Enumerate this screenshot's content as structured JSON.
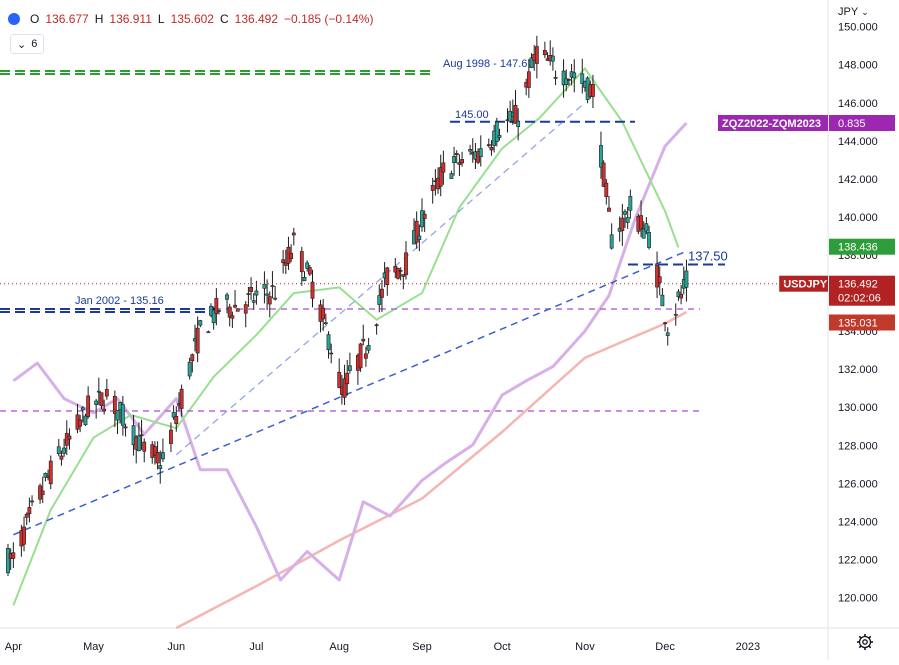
{
  "header": {
    "open_label": "O",
    "open": "136.677",
    "high_label": "H",
    "high": "136.911",
    "low_label": "L",
    "low": "135.602",
    "close_label": "C",
    "close": "136.492",
    "change": "−0.185 (−0.14%)",
    "indicator_count": "6",
    "currency": "JPY"
  },
  "chart_data": {
    "type": "line",
    "symbol": "USDJPY",
    "y_axis": {
      "ticks": [
        "150.000",
        "148.000",
        "146.000",
        "144.000",
        "142.000",
        "140.000",
        "138.000",
        "136.000",
        "134.000",
        "132.000",
        "130.000",
        "128.000",
        "126.000",
        "124.000",
        "122.000",
        "120.000"
      ],
      "ylim": [
        118.4,
        151.4
      ]
    },
    "x_axis": {
      "ticks": [
        "Apr",
        "May",
        "Jun",
        "Jul",
        "Aug",
        "Sep",
        "Oct",
        "Nov",
        "Dec",
        "2023"
      ]
    },
    "price_series": {
      "name": "USDJPY",
      "x": [
        "2022-04-01",
        "2022-04-08",
        "2022-04-15",
        "2022-04-22",
        "2022-04-29",
        "2022-05-06",
        "2022-05-13",
        "2022-05-20",
        "2022-05-27",
        "2022-06-03",
        "2022-06-10",
        "2022-06-17",
        "2022-06-24",
        "2022-07-01",
        "2022-07-08",
        "2022-07-15",
        "2022-07-22",
        "2022-07-29",
        "2022-08-02",
        "2022-08-12",
        "2022-08-19",
        "2022-08-26",
        "2022-09-02",
        "2022-09-09",
        "2022-09-16",
        "2022-09-23",
        "2022-09-30",
        "2022-10-07",
        "2022-10-14",
        "2022-10-21",
        "2022-10-28",
        "2022-11-04",
        "2022-11-11",
        "2022-11-18",
        "2022-11-25",
        "2022-12-02",
        "2022-12-09"
      ],
      "values": [
        122.0,
        124.5,
        126.6,
        128.3,
        129.9,
        130.6,
        129.3,
        127.8,
        127.1,
        130.6,
        134.0,
        135.2,
        135.3,
        135.8,
        136.1,
        138.6,
        136.4,
        133.2,
        130.8,
        133.5,
        136.9,
        137.6,
        140.2,
        142.4,
        143.0,
        143.4,
        144.7,
        145.3,
        148.7,
        147.7,
        147.4,
        146.6,
        138.9,
        140.4,
        139.0,
        134.3,
        136.5
      ]
    },
    "sma_20": {
      "x": [
        "2022-04-01",
        "2022-04-15",
        "2022-05-01",
        "2022-05-15",
        "2022-06-01",
        "2022-06-15",
        "2022-07-01",
        "2022-07-15",
        "2022-08-01",
        "2022-08-15",
        "2022-09-01",
        "2022-09-15",
        "2022-10-01",
        "2022-10-15",
        "2022-11-01",
        "2022-11-15",
        "2022-12-01",
        "2022-12-06"
      ],
      "values": [
        119.6,
        124.6,
        128.4,
        129.6,
        128.9,
        131.6,
        133.8,
        136.0,
        136.3,
        134.6,
        136.0,
        140.5,
        143.6,
        145.2,
        147.8,
        145.0,
        140.3,
        138.4
      ]
    },
    "sma_200": {
      "x": [
        "2022-06-01",
        "2022-07-01",
        "2022-08-01",
        "2022-09-01",
        "2022-10-01",
        "2022-11-01",
        "2022-12-01",
        "2022-12-09"
      ],
      "values": [
        118.4,
        120.6,
        123.0,
        125.2,
        128.7,
        132.6,
        134.4,
        135.0
      ]
    },
    "spread_series": {
      "name": "ZQZ2022-ZQM2023",
      "x": [
        "2022-04-01",
        "2022-04-10",
        "2022-04-20",
        "2022-05-01",
        "2022-05-10",
        "2022-05-20",
        "2022-06-01",
        "2022-06-10",
        "2022-06-20",
        "2022-07-01",
        "2022-07-10",
        "2022-07-20",
        "2022-08-01",
        "2022-08-10",
        "2022-08-20",
        "2022-09-01",
        "2022-09-10",
        "2022-09-20",
        "2022-10-01",
        "2022-10-10",
        "2022-10-20",
        "2022-11-01",
        "2022-11-10",
        "2022-11-20",
        "2022-12-01",
        "2022-12-09"
      ],
      "values": [
        0.11,
        0.16,
        0.06,
        0.02,
        0.06,
        -0.04,
        0.06,
        -0.14,
        -0.14,
        -0.3,
        -0.45,
        -0.37,
        -0.45,
        -0.23,
        -0.27,
        -0.17,
        -0.12,
        -0.07,
        0.07,
        0.11,
        0.15,
        0.25,
        0.35,
        0.57,
        0.77,
        0.835
      ]
    },
    "lines": {
      "horizontal": [
        {
          "label": "Aug 1998 - 147.67",
          "value": 147.67,
          "color": "#2ca02c"
        },
        {
          "label": "145.00",
          "value": 145.0,
          "color": "#1a3a9c"
        },
        {
          "label": "137.50",
          "value": 137.5,
          "color": "#1a3a9c"
        },
        {
          "label": "Jan 2002 - 135.16",
          "value": 135.16,
          "color": "#1a3a9c"
        },
        {
          "label": "",
          "value": 135.16,
          "color": "#b86ad6"
        },
        {
          "label": "",
          "value": 129.8,
          "color": "#b86ad6"
        }
      ],
      "trendlines": [
        {
          "from": [
            "2022-04-01",
            123.3
          ],
          "to": [
            "2022-12-09",
            138.2
          ],
          "color": "#3b5fd0"
        },
        {
          "from": [
            "2022-06-01",
            127.5
          ],
          "to": [
            "2022-11-01",
            146.0
          ],
          "color": "#3b5fd0"
        }
      ]
    },
    "price_labels": [
      {
        "text": "ZQZ2022-ZQM2023",
        "value_text": "0.835",
        "color": "#9c27b0"
      },
      {
        "text": "",
        "value_text": "138.436",
        "color": "#2e9e3a"
      },
      {
        "text": "USDJPY",
        "value_text": "136.492",
        "sub_text": "02:02:06",
        "color": "#b22222"
      },
      {
        "text": "",
        "value_text": "135.031",
        "color": "#c0392b"
      }
    ],
    "colors": {
      "candle_up": "#26a69a",
      "candle_down": "#d32f2f",
      "candle_body": "#1c1c1c",
      "sma_20": "#98e08f",
      "sma_200": "#f5b5b1",
      "spread": "#d7b0e8"
    },
    "grid": false,
    "legend": "top-left"
  }
}
